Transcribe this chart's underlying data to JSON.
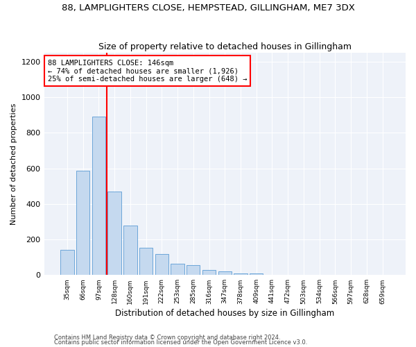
{
  "title": "88, LAMPLIGHTERS CLOSE, HEMPSTEAD, GILLINGHAM, ME7 3DX",
  "subtitle": "Size of property relative to detached houses in Gillingham",
  "xlabel": "Distribution of detached houses by size in Gillingham",
  "ylabel": "Number of detached properties",
  "categories": [
    "35sqm",
    "66sqm",
    "97sqm",
    "128sqm",
    "160sqm",
    "191sqm",
    "222sqm",
    "253sqm",
    "285sqm",
    "316sqm",
    "347sqm",
    "378sqm",
    "409sqm",
    "441sqm",
    "472sqm",
    "503sqm",
    "534sqm",
    "566sqm",
    "597sqm",
    "628sqm",
    "659sqm"
  ],
  "values": [
    140,
    585,
    890,
    470,
    280,
    155,
    120,
    65,
    55,
    30,
    20,
    10,
    8,
    0,
    0,
    0,
    0,
    0,
    0,
    0,
    0
  ],
  "bar_color": "#c5d9ef",
  "bar_edge_color": "#5b9bd5",
  "vline_x": 2.5,
  "vline_color": "red",
  "annotation_text": "88 LAMPLIGHTERS CLOSE: 146sqm\n← 74% of detached houses are smaller (1,926)\n25% of semi-detached houses are larger (648) →",
  "annotation_box_color": "white",
  "annotation_box_edge": "red",
  "ylim": [
    0,
    1250
  ],
  "yticks": [
    0,
    200,
    400,
    600,
    800,
    1000,
    1200
  ],
  "footer1": "Contains HM Land Registry data © Crown copyright and database right 2024.",
  "footer2": "Contains public sector information licensed under the Open Government Licence v3.0.",
  "fig_width": 6.0,
  "fig_height": 5.0,
  "background_color": "#eef2f9"
}
